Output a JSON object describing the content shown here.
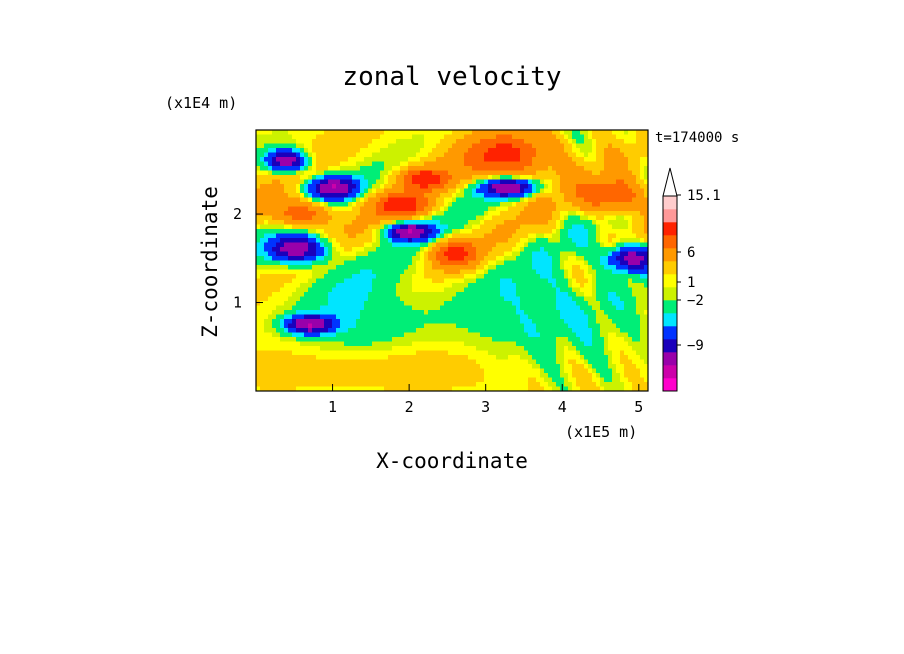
{
  "chart_data": {
    "type": "heatmap",
    "title": "zonal velocity",
    "xlabel": "X-coordinate",
    "ylabel": "Z-coordinate",
    "x_scale_label": "(x1E5 m)",
    "y_scale_label": "(x1E4 m)",
    "time_label": "t=174000 s",
    "xlim": [
      0,
      5.12
    ],
    "ylim": [
      0,
      2.95
    ],
    "x_ticks": [
      {
        "value": 1,
        "label": "1"
      },
      {
        "value": 2,
        "label": "2"
      },
      {
        "value": 3,
        "label": "3"
      },
      {
        "value": 4,
        "label": "4"
      },
      {
        "value": 5,
        "label": "5"
      }
    ],
    "y_ticks": [
      {
        "value": 1,
        "label": "1"
      },
      {
        "value": 2,
        "label": "2"
      }
    ],
    "colorbar": {
      "levels": [
        {
          "color": "#ff00cc"
        },
        {
          "color": "#cc00aa"
        },
        {
          "color": "#9900aa"
        },
        {
          "color": "#1a00bb"
        },
        {
          "color": "#0033ff"
        },
        {
          "color": "#00e5ff"
        },
        {
          "color": "#00ee77"
        },
        {
          "color": "#ccf200"
        },
        {
          "color": "#ffff00"
        },
        {
          "color": "#ffcc00"
        },
        {
          "color": "#ff9900"
        },
        {
          "color": "#ff6600"
        },
        {
          "color": "#ff2200"
        },
        {
          "color": "#ff9999"
        },
        {
          "color": "#ffcccc"
        }
      ],
      "labels": [
        "15.1",
        "6",
        "1",
        "−2",
        "−9"
      ],
      "extend": "top"
    },
    "field_features": [
      {
        "type": "blob",
        "x": 0.55,
        "z": 1.6,
        "rx": 0.35,
        "rz": 0.15,
        "value": -9
      },
      {
        "type": "blob",
        "x": 0.4,
        "z": 2.6,
        "rx": 0.25,
        "rz": 0.12,
        "value": -9
      },
      {
        "type": "blob",
        "x": 0.7,
        "z": 0.75,
        "rx": 0.3,
        "rz": 0.1,
        "value": -9
      },
      {
        "type": "blob",
        "x": 0.6,
        "z": 2.0,
        "rx": 0.35,
        "rz": 0.15,
        "value": 6
      },
      {
        "type": "blob",
        "x": 1.0,
        "z": 2.3,
        "rx": 0.3,
        "rz": 0.12,
        "value": -9
      },
      {
        "type": "blob",
        "x": 1.9,
        "z": 2.1,
        "rx": 0.35,
        "rz": 0.13,
        "value": 6
      },
      {
        "type": "blob",
        "x": 2.2,
        "z": 2.4,
        "rx": 0.3,
        "rz": 0.12,
        "value": 6
      },
      {
        "type": "blob",
        "x": 2.0,
        "z": 1.8,
        "rx": 0.3,
        "rz": 0.1,
        "value": -9
      },
      {
        "type": "blob",
        "x": 2.6,
        "z": 1.55,
        "rx": 0.3,
        "rz": 0.15,
        "value": 6
      },
      {
        "type": "blob",
        "x": 3.3,
        "z": 2.3,
        "rx": 0.35,
        "rz": 0.1,
        "value": -9
      },
      {
        "type": "blob",
        "x": 4.9,
        "z": 1.5,
        "rx": 0.3,
        "rz": 0.15,
        "value": -9
      },
      {
        "type": "blob",
        "x": 1.3,
        "z": 0.9,
        "rx": 0.8,
        "rz": 0.6,
        "value": -2
      },
      {
        "type": "blob",
        "x": 3.8,
        "z": 0.9,
        "rx": 1.2,
        "rz": 0.6,
        "value": -2
      },
      {
        "type": "blob",
        "x": 3.3,
        "z": 2.65,
        "rx": 0.6,
        "rz": 0.25,
        "value": 6
      },
      {
        "type": "blob",
        "x": 4.7,
        "z": 2.2,
        "rx": 0.4,
        "rz": 0.2,
        "value": 6
      },
      {
        "type": "blob",
        "x": 1.6,
        "z": 0.3,
        "rx": 1.6,
        "rz": 0.25,
        "value": 1
      }
    ]
  }
}
